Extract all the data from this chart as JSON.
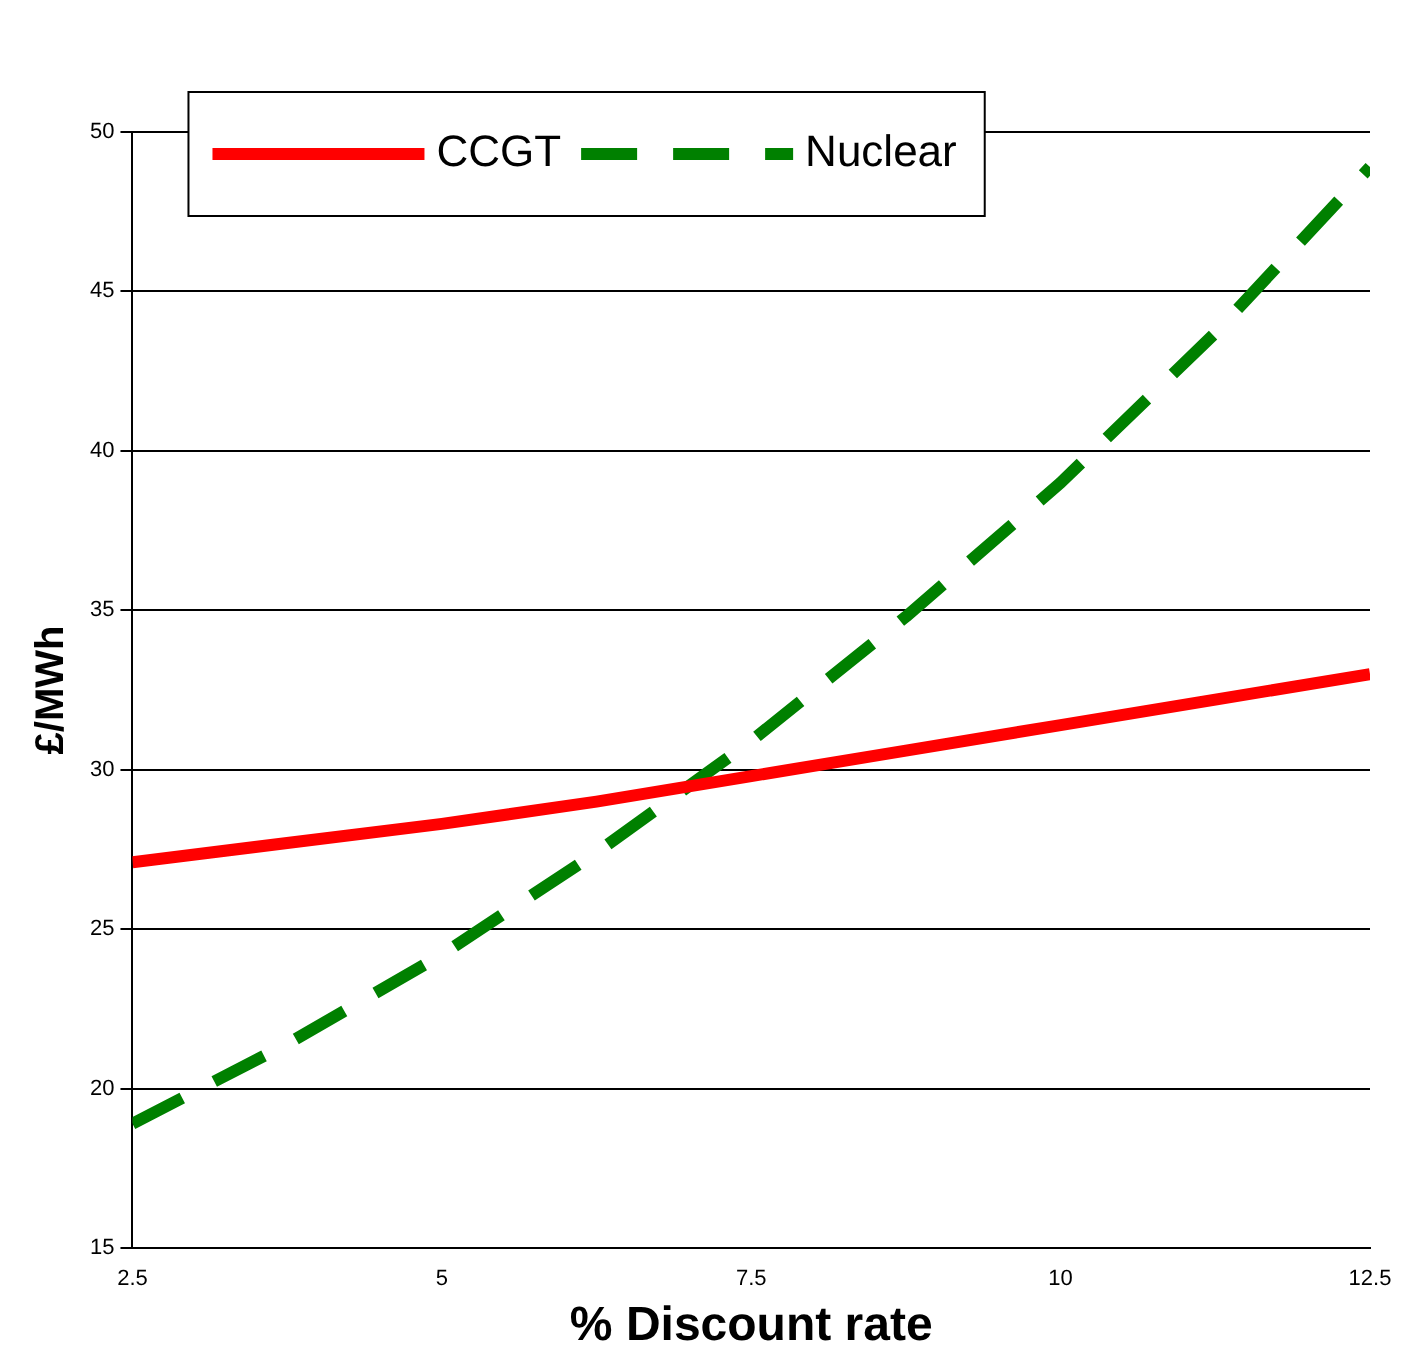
{
  "chart_data": {
    "type": "line",
    "xlabel": "% Discount rate",
    "ylabel": "£/MWh",
    "x": [
      2.5,
      3.75,
      5,
      6.25,
      7.5,
      8.75,
      10,
      11.25,
      12.5
    ],
    "series": [
      {
        "name": "CCGT",
        "color": "#ff0000",
        "values": [
          27.1,
          27.7,
          28.3,
          29.0,
          29.8,
          30.6,
          31.4,
          32.2,
          33.0
        ],
        "line_style": "solid"
      },
      {
        "name": "Nuclear",
        "color": "#008000",
        "values": [
          18.9,
          21.4,
          24.2,
          27.4,
          30.9,
          34.8,
          39.0,
          43.7,
          48.9
        ],
        "line_style": "dashed"
      }
    ],
    "xlim": [
      2.5,
      12.5
    ],
    "xticks": [
      2.5,
      5,
      7.5,
      10,
      12.5
    ],
    "ylim": [
      15,
      50
    ],
    "yticks": [
      15,
      20,
      25,
      30,
      35,
      40,
      45,
      50
    ],
    "grid": "y",
    "legend": "top left",
    "marker": "none"
  }
}
